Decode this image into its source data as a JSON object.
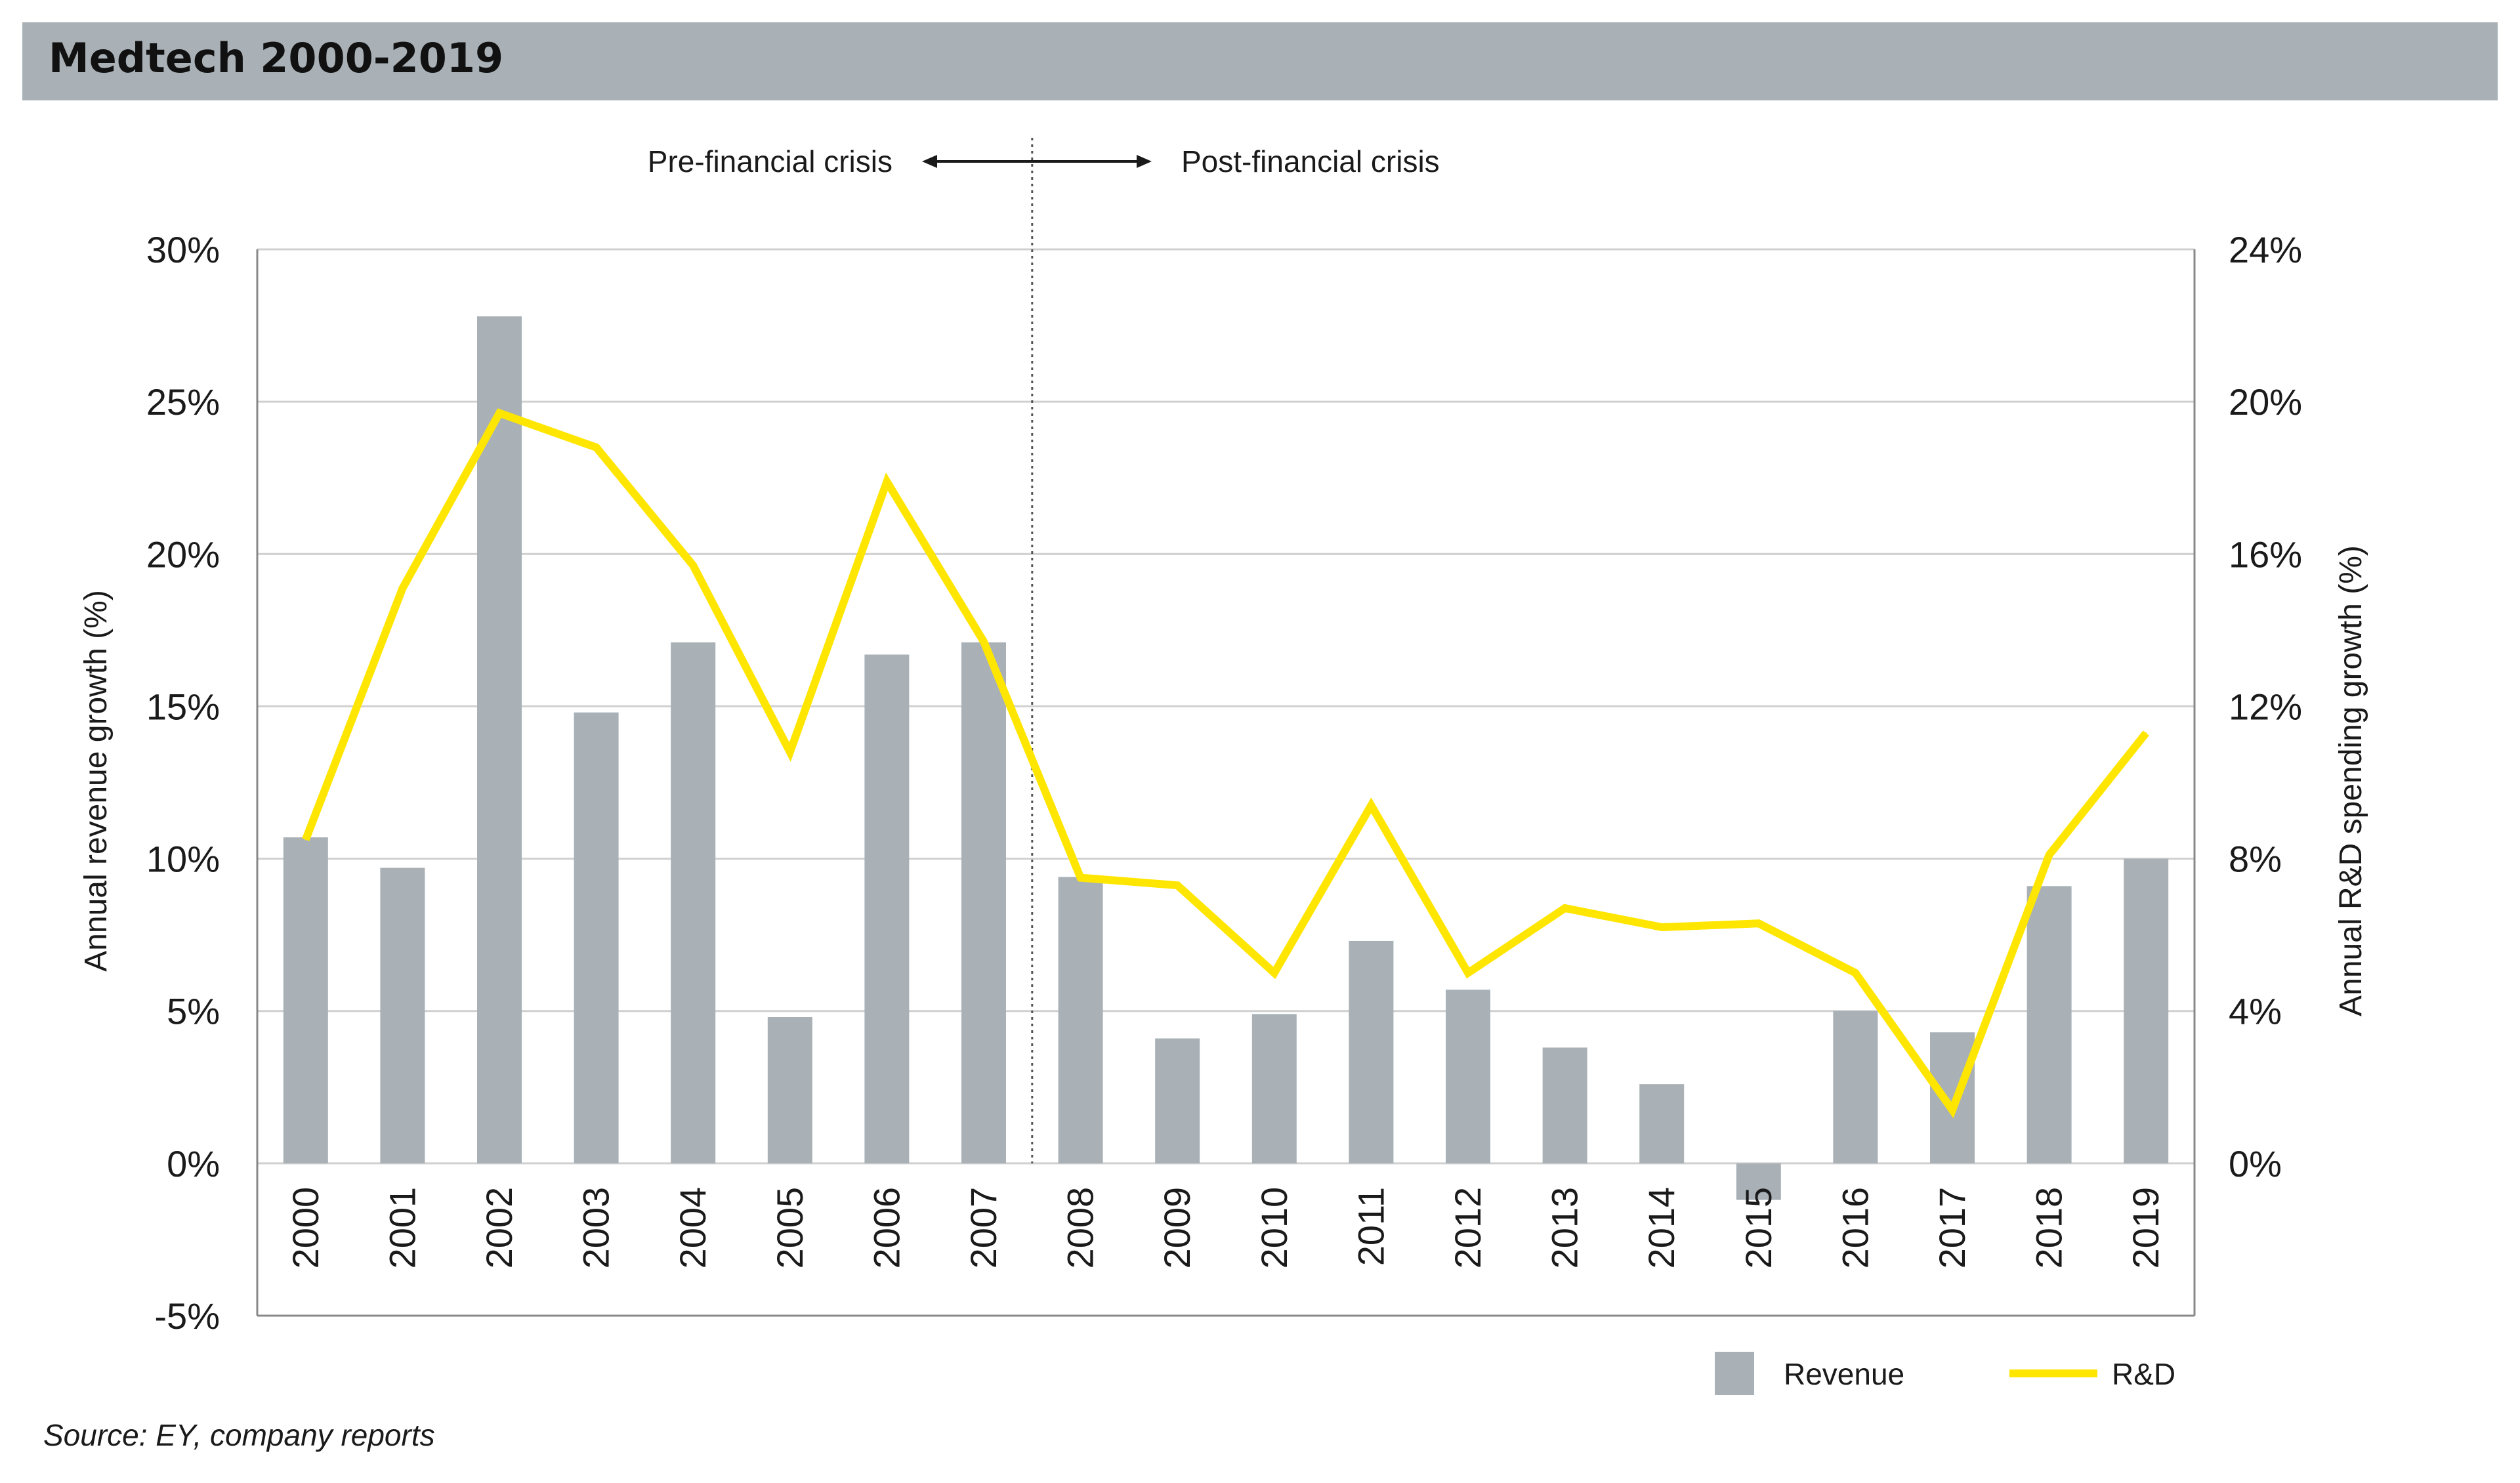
{
  "title": "Medtech 2000-2019",
  "source": "Source: EY, company reports",
  "annotations": {
    "pre": "Pre-financial crisis",
    "post": "Post-financial crisis"
  },
  "colors": {
    "revenue": "#a9b1b6",
    "rnd": "#ffe600",
    "grid": "#d0d0d0",
    "axis": "#888888"
  },
  "chart_data": {
    "type": "bar",
    "categories": [
      "2000",
      "2001",
      "2002",
      "2003",
      "2004",
      "2005",
      "2006",
      "2007",
      "2008",
      "2009",
      "2010",
      "2011",
      "2012",
      "2013",
      "2014",
      "2015",
      "2016",
      "2017",
      "2018",
      "2019"
    ],
    "series": [
      {
        "name": "Revenue",
        "type": "bar",
        "axis": "left",
        "values": [
          10.7,
          9.7,
          27.8,
          14.8,
          17.1,
          4.8,
          16.7,
          17.1,
          9.4,
          4.1,
          4.9,
          7.3,
          5.7,
          3.8,
          2.6,
          -1.2,
          5.0,
          4.3,
          9.1,
          10.0
        ]
      },
      {
        "name": "R&D",
        "type": "line",
        "axis": "right",
        "values": [
          8.5,
          15.1,
          19.7,
          18.8,
          15.7,
          10.8,
          17.9,
          13.7,
          7.5,
          7.3,
          5.0,
          9.4,
          5.0,
          6.7,
          6.2,
          6.3,
          5.0,
          1.4,
          8.1,
          11.3
        ]
      }
    ],
    "ylabel": "Annual revenue growth (%)",
    "y2label": "Annual R&D spending growth (%)",
    "ylim": [
      -5,
      30
    ],
    "yticks": [
      "-5%",
      "0%",
      "5%",
      "10%",
      "15%",
      "20%",
      "25%",
      "30%"
    ],
    "y2lim": [
      -4,
      24
    ],
    "y2ticks": [
      "0%",
      "4%",
      "8%",
      "12%",
      "16%",
      "20%",
      "24%"
    ],
    "grid": true,
    "legend": "bottom-right",
    "divider_after": "2007"
  }
}
